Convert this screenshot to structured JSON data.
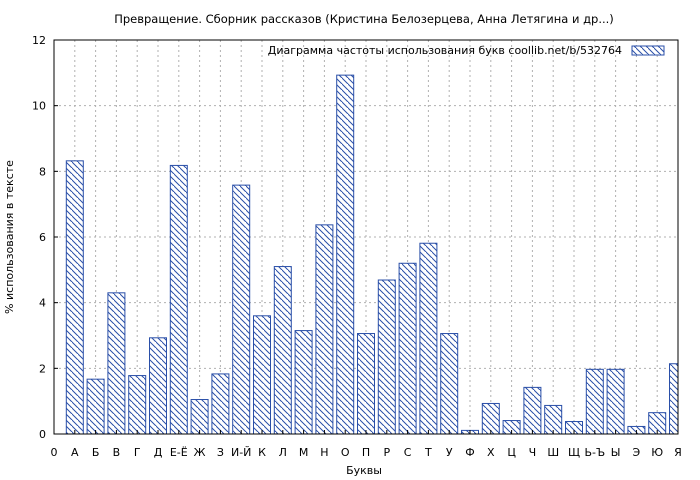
{
  "chart_data": {
    "type": "bar",
    "title": "Превращение. Сборник рассказов (Кристина Белозерцева, Анна Летягина и др...)",
    "xlabel": "Буквы",
    "ylabel": "% использования в тексте",
    "ylim": [
      0,
      12
    ],
    "yticks": [
      0,
      2,
      4,
      6,
      8,
      10,
      12
    ],
    "grid": true,
    "legend": {
      "label": "Диаграмма частоты использования букв  coollib.net/b/532764",
      "placement": "top-right"
    },
    "categories": [
      "0",
      "А",
      "Б",
      "В",
      "Г",
      "Д",
      "Е-Ё",
      "Ж",
      "З",
      "И-Й",
      "К",
      "Л",
      "М",
      "Н",
      "О",
      "П",
      "Р",
      "С",
      "Т",
      "У",
      "Ф",
      "Х",
      "Ц",
      "Ч",
      "Ш",
      "Щ",
      "Ь-Ъ",
      "Ы",
      "Э",
      "Ю",
      "Я"
    ],
    "values": [
      0,
      8.32,
      1.67,
      4.3,
      1.78,
      2.93,
      8.18,
      1.05,
      1.83,
      7.58,
      3.6,
      5.1,
      3.15,
      6.37,
      10.93,
      3.06,
      4.69,
      5.2,
      5.81,
      3.06,
      0.11,
      0.93,
      0.41,
      1.42,
      0.87,
      0.38,
      1.97,
      1.97,
      0.23,
      0.65,
      2.14
    ]
  },
  "colors": {
    "bar_stroke": "#2a4fa8",
    "hatch": "#2a4fa8",
    "grid": "#b0b0b0"
  }
}
